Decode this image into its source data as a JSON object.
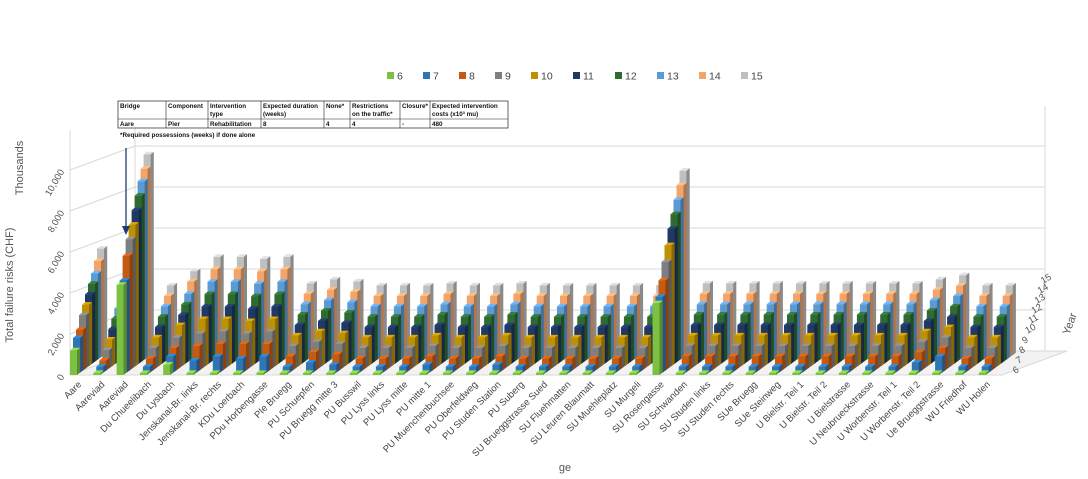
{
  "chart_data": {
    "type": "bar",
    "variant": "3d-grouped-by-year",
    "ylabel": "Total failure risks (CHF)",
    "y_units": "Thousands",
    "zlabel": "Year",
    "xlabel_visible": "ge",
    "ylim": [
      0,
      10000
    ],
    "y_ticks": [
      "0",
      "2,000",
      "4,000",
      "6,000",
      "8,000",
      "10,000"
    ],
    "z_ticks": [
      "6",
      "7",
      "8",
      "9",
      "10",
      "11",
      "12",
      "13",
      "14",
      "15"
    ],
    "legend_position": "top",
    "grid": true,
    "categories": [
      "Aare",
      "Aareviad",
      "Aareviad",
      "Du Chueelibach",
      "Du Lysbach",
      "Jenskanal-Br. links",
      "Jenskanal-Br. rechts",
      "KDu Loerbach",
      "PDu Horbengasse",
      "PIe Bruegg",
      "PU Schuepfen",
      "PU Bruegg mitte 3",
      "PU Busswil",
      "PU Lyss links",
      "PU Lyss mitte",
      "PU mitte 1",
      "PU Muenchenbuchsee",
      "PU Oberfeldweg",
      "PU Studen Station",
      "PU Suberg",
      "SU Brueggstrasse Sued",
      "SU Fluehmatten",
      "SU Leuren Blaumatt",
      "SU Muehleplatz",
      "SU Murgeli",
      "SU Rosengasse",
      "SU Schwanden",
      "SU Studen links",
      "SU Studen rechts",
      "SUe Bruegg",
      "SUe Steinweg",
      "U Bielstr. Teil 1",
      "U Bielstr. Teil 2",
      "U Bielstrasse",
      "U Neubrueckstrasse",
      "U Worbenstr. Teil 1",
      "U Worbenstr. Teil 2",
      "Ue Brueggstrasse",
      "WU Friedhof",
      "WU Holen"
    ],
    "series": [
      {
        "name": "6",
        "color": "#7cc142",
        "values": [
          1200,
          100,
          4400,
          100,
          500,
          100,
          100,
          100,
          100,
          100,
          100,
          100,
          100,
          100,
          100,
          100,
          100,
          100,
          100,
          100,
          100,
          100,
          100,
          100,
          100,
          3500,
          100,
          100,
          100,
          100,
          100,
          100,
          100,
          100,
          100,
          100,
          100,
          100,
          100,
          100
        ]
      },
      {
        "name": "7",
        "color": "#2e75b6",
        "values": [
          1700,
          300,
          4500,
          300,
          800,
          600,
          800,
          700,
          800,
          300,
          500,
          400,
          300,
          300,
          300,
          400,
          300,
          300,
          400,
          300,
          300,
          300,
          300,
          300,
          300,
          3700,
          300,
          300,
          300,
          300,
          300,
          300,
          300,
          300,
          300,
          300,
          500,
          800,
          300,
          300
        ]
      },
      {
        "name": "8",
        "color": "#c55a11",
        "values": [
          2000,
          500,
          5600,
          600,
          1100,
          1200,
          1300,
          1300,
          1300,
          700,
          900,
          800,
          600,
          600,
          600,
          700,
          600,
          600,
          700,
          600,
          600,
          600,
          600,
          600,
          600,
          4400,
          700,
          700,
          700,
          700,
          700,
          700,
          700,
          700,
          700,
          700,
          900,
          1100,
          600,
          600
        ]
      },
      {
        "name": "9",
        "color": "#7f7f7f",
        "values": [
          2600,
          900,
          6300,
          1000,
          1500,
          1700,
          1800,
          1700,
          1800,
          1100,
          1300,
          1200,
          1000,
          1000,
          1000,
          1100,
          1000,
          1000,
          1100,
          1000,
          1000,
          1000,
          1000,
          1000,
          1000,
          5200,
          1100,
          1100,
          1100,
          1100,
          1100,
          1100,
          1100,
          1100,
          1100,
          1100,
          1300,
          1500,
          1000,
          1000
        ]
      },
      {
        "name": "10",
        "color": "#bf9000",
        "values": [
          3000,
          1300,
          6900,
          1400,
          2000,
          2300,
          2300,
          2200,
          2300,
          1500,
          1700,
          1600,
          1400,
          1400,
          1400,
          1500,
          1400,
          1400,
          1500,
          1400,
          1400,
          1400,
          1400,
          1400,
          1400,
          5900,
          1500,
          1500,
          1500,
          1500,
          1500,
          1500,
          1500,
          1500,
          1500,
          1500,
          1700,
          1900,
          1400,
          1400
        ]
      },
      {
        "name": "11",
        "color": "#1f3864",
        "values": [
          3400,
          1700,
          7500,
          1800,
          2400,
          2800,
          2800,
          2700,
          2800,
          1900,
          2100,
          2000,
          1800,
          1800,
          1800,
          1900,
          1800,
          1800,
          1900,
          1800,
          1800,
          1800,
          1800,
          1800,
          1800,
          6600,
          1900,
          1900,
          1900,
          1900,
          1900,
          1900,
          1900,
          1900,
          1900,
          1900,
          2100,
          2300,
          1800,
          1800
        ]
      },
      {
        "name": "12",
        "color": "#2e6b30",
        "values": [
          3800,
          2100,
          8100,
          2200,
          2800,
          3300,
          3300,
          3200,
          3300,
          2300,
          2500,
          2400,
          2200,
          2200,
          2200,
          2300,
          2200,
          2200,
          2300,
          2200,
          2200,
          2200,
          2200,
          2200,
          2200,
          7200,
          2300,
          2300,
          2300,
          2300,
          2300,
          2300,
          2300,
          2300,
          2300,
          2300,
          2500,
          2700,
          2200,
          2200
        ]
      },
      {
        "name": "13",
        "color": "#5b9bd5",
        "values": [
          4200,
          2500,
          8700,
          2600,
          3200,
          3800,
          3800,
          3700,
          3800,
          2700,
          2900,
          2800,
          2600,
          2600,
          2600,
          2700,
          2600,
          2600,
          2700,
          2600,
          2600,
          2600,
          2600,
          2600,
          2600,
          7800,
          2700,
          2700,
          2700,
          2700,
          2700,
          2700,
          2700,
          2700,
          2700,
          2700,
          2900,
          3100,
          2600,
          2600
        ]
      },
      {
        "name": "14",
        "color": "#f4a46a",
        "values": [
          4700,
          2900,
          9200,
          3000,
          3700,
          4300,
          4300,
          4200,
          4300,
          3100,
          3300,
          3200,
          3000,
          3000,
          3000,
          3100,
          3000,
          3000,
          3100,
          3000,
          3000,
          3000,
          3000,
          3000,
          3000,
          8400,
          3100,
          3100,
          3100,
          3100,
          3100,
          3100,
          3100,
          3100,
          3100,
          3100,
          3300,
          3500,
          3000,
          3000
        ]
      },
      {
        "name": "15",
        "color": "#bfbfbf",
        "values": [
          5200,
          3300,
          9800,
          3400,
          4100,
          4800,
          4800,
          4700,
          4800,
          3500,
          3700,
          3600,
          3400,
          3400,
          3400,
          3500,
          3400,
          3400,
          3500,
          3400,
          3400,
          3400,
          3400,
          3400,
          3400,
          9000,
          3500,
          3500,
          3500,
          3500,
          3500,
          3500,
          3500,
          3500,
          3500,
          3500,
          3700,
          3900,
          3400,
          3400
        ]
      }
    ]
  },
  "table": {
    "headers": [
      "Bridge",
      "Component",
      "Intervention type",
      "Expected duration (weeks)",
      "None*",
      "Restrictions on the traffic*",
      "Closure*",
      "Expected intervention costs (x10³ mu)"
    ],
    "row": [
      "Aare",
      "Pier",
      "Rehabilitation",
      "8",
      "4",
      "4",
      "-",
      "480"
    ],
    "footnote": "*Required possessions (weeks) if done alone"
  }
}
